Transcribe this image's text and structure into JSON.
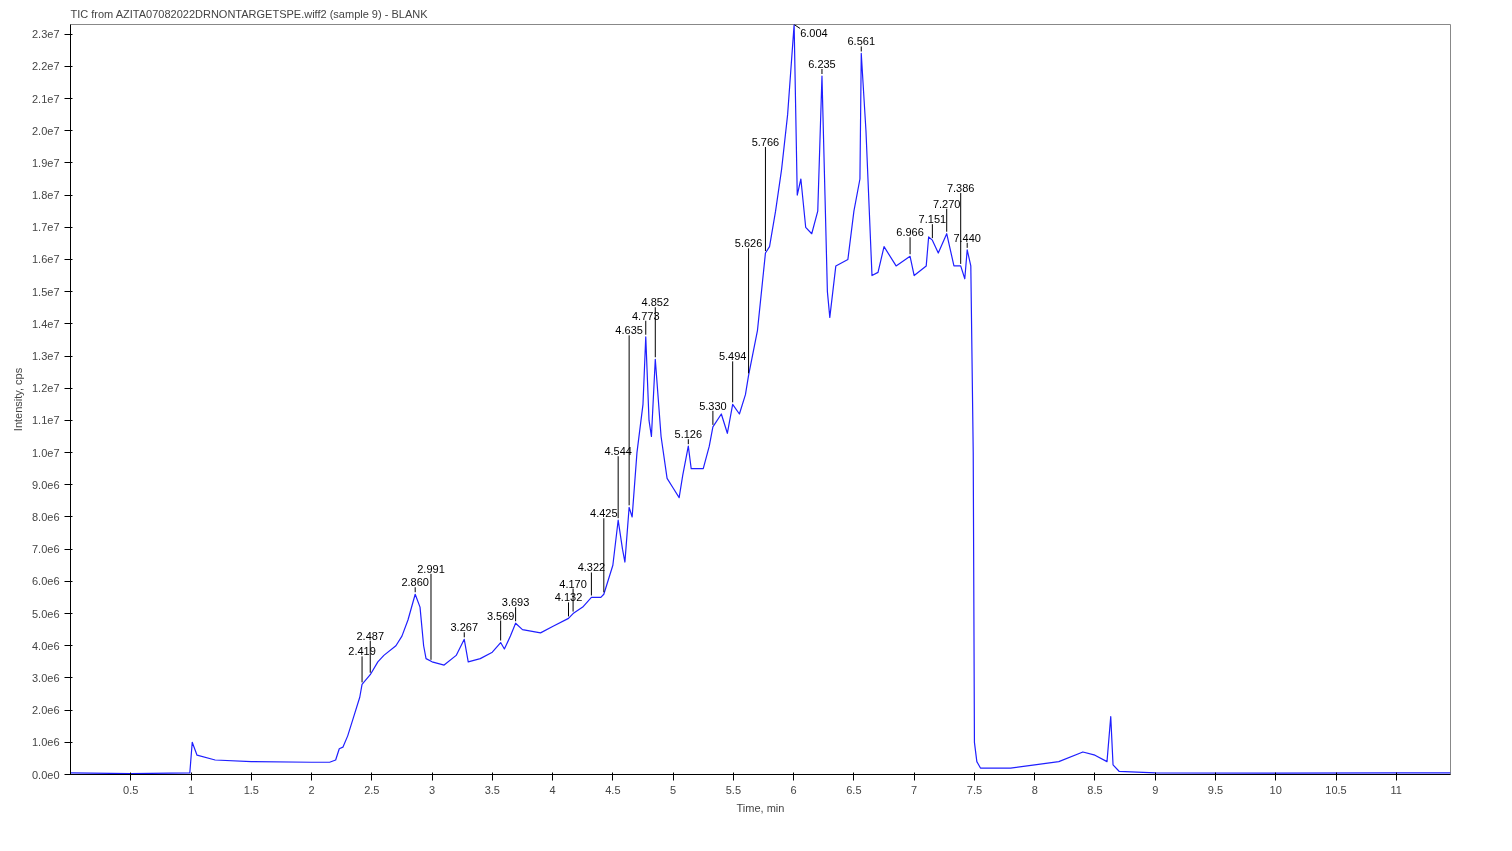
{
  "chart_data": {
    "type": "line",
    "title": "TIC from AZITA07082022DRNONTARGETSPE.wiff2 (sample 9) - BLANK",
    "xlabel": "Time, min",
    "ylabel": "Intensity, cps",
    "x": [
      0.0,
      0.5,
      0.99,
      1.01,
      1.05,
      1.2,
      1.5,
      2.0,
      2.15,
      2.2,
      2.23,
      2.26,
      2.3,
      2.35,
      2.4,
      2.419,
      2.487,
      2.55,
      2.6,
      2.7,
      2.75,
      2.8,
      2.86,
      2.9,
      2.93,
      2.95,
      3.0,
      3.1,
      3.2,
      3.267,
      3.3,
      3.4,
      3.5,
      3.569,
      3.6,
      3.65,
      3.693,
      3.75,
      3.9,
      4.0,
      4.132,
      4.17,
      4.25,
      4.322,
      4.4,
      4.425,
      4.5,
      4.544,
      4.58,
      4.6,
      4.635,
      4.66,
      4.7,
      4.75,
      4.773,
      4.8,
      4.82,
      4.852,
      4.9,
      4.95,
      5.0,
      5.05,
      5.08,
      5.126,
      5.15,
      5.25,
      5.3,
      5.33,
      5.4,
      5.45,
      5.494,
      5.55,
      5.6,
      5.626,
      5.7,
      5.766,
      5.8,
      5.85,
      5.9,
      5.95,
      6.004,
      6.03,
      6.06,
      6.1,
      6.15,
      6.2,
      6.235,
      6.26,
      6.28,
      6.3,
      6.35,
      6.45,
      6.5,
      6.55,
      6.561,
      6.6,
      6.65,
      6.7,
      6.75,
      6.85,
      6.966,
      7.0,
      7.1,
      7.12,
      7.151,
      7.2,
      7.27,
      7.33,
      7.386,
      7.42,
      7.44,
      7.47,
      7.49,
      7.5,
      7.52,
      7.55,
      7.8,
      8.0,
      8.2,
      8.4,
      8.5,
      8.6,
      8.631,
      8.65,
      8.7,
      9.0,
      10.0,
      11.0,
      11.45
    ],
    "series": [
      {
        "color": "#1f1fff",
        "values": [
          50000,
          30000,
          50000,
          1000000,
          600000,
          450000,
          400000,
          380000,
          380000,
          450000,
          800000,
          850000,
          1200000,
          1800000,
          2400000,
          2800000,
          3100000,
          3500000,
          3700000,
          4000000,
          4300000,
          4800000,
          5600000,
          5200000,
          4000000,
          3600000,
          3500000,
          3400000,
          3700000,
          4200000,
          3500000,
          3600000,
          3800000,
          4100000,
          3900000,
          4300000,
          4700000,
          4500000,
          4400000,
          4600000,
          4850000,
          5000000,
          5200000,
          5500000,
          5500000,
          5600000,
          6500000,
          7900000,
          7000000,
          6600000,
          8300000,
          8000000,
          10000000,
          11500000,
          13600000,
          11000000,
          10500000,
          12900000,
          10500000,
          9200000,
          8900000,
          8600000,
          9300000,
          10200000,
          9500000,
          9500000,
          10200000,
          10800000,
          11200000,
          10600000,
          11500000,
          11200000,
          11800000,
          12400000,
          13800000,
          16200000,
          16400000,
          17500000,
          18800000,
          20500000,
          23300000,
          18000000,
          18500000,
          17000000,
          16800000,
          17500000,
          21700000,
          18000000,
          15000000,
          14200000,
          15800000,
          16000000,
          17500000,
          18500000,
          22400000,
          20000000,
          15500000,
          15600000,
          16400000,
          15800000,
          16100000,
          15500000,
          15800000,
          16700000,
          16600000,
          16200000,
          16800000,
          15800000,
          15800000,
          15400000,
          16300000,
          15800000,
          10000000,
          1000000,
          400000,
          200000,
          200000,
          300000,
          400000,
          700000,
          600000,
          400000,
          1800000,
          300000,
          100000,
          50000,
          40000,
          50000,
          50000
        ]
      }
    ],
    "xlim": [
      0,
      11.45
    ],
    "ylim": [
      0,
      23300000
    ],
    "xticks": [
      0.5,
      1.0,
      1.5,
      2.0,
      2.5,
      3.0,
      3.5,
      4.0,
      4.5,
      5.0,
      5.5,
      6.0,
      6.5,
      7.0,
      7.5,
      8.0,
      8.5,
      9.0,
      9.5,
      10.0,
      10.5,
      11.0
    ],
    "yticks": [
      {
        "value": 0,
        "label": "0.0e0"
      },
      {
        "value": 1000000,
        "label": "1.0e6"
      },
      {
        "value": 2000000,
        "label": "2.0e6"
      },
      {
        "value": 3000000,
        "label": "3.0e6"
      },
      {
        "value": 4000000,
        "label": "4.0e6"
      },
      {
        "value": 5000000,
        "label": "5.0e6"
      },
      {
        "value": 6000000,
        "label": "6.0e6"
      },
      {
        "value": 7000000,
        "label": "7.0e6"
      },
      {
        "value": 8000000,
        "label": "8.0e6"
      },
      {
        "value": 9000000,
        "label": "9.0e6"
      },
      {
        "value": 10000000,
        "label": "1.0e7"
      },
      {
        "value": 11000000,
        "label": "1.1e7"
      },
      {
        "value": 12000000,
        "label": "1.2e7"
      },
      {
        "value": 13000000,
        "label": "1.3e7"
      },
      {
        "value": 14000000,
        "label": "1.4e7"
      },
      {
        "value": 15000000,
        "label": "1.5e7"
      },
      {
        "value": 16000000,
        "label": "1.6e7"
      },
      {
        "value": 17000000,
        "label": "1.7e7"
      },
      {
        "value": 18000000,
        "label": "1.8e7"
      },
      {
        "value": 19000000,
        "label": "1.9e7"
      },
      {
        "value": 20000000,
        "label": "2.0e7"
      },
      {
        "value": 21000000,
        "label": "2.1e7"
      },
      {
        "value": 22000000,
        "label": "2.2e7"
      },
      {
        "value": 23000000,
        "label": "2.3e7"
      }
    ],
    "grid": false,
    "marker": "none",
    "line_style": "solid",
    "annotations": [
      {
        "text": "2.419",
        "x": 2.419,
        "y": 2800000
      },
      {
        "text": "2.487",
        "x": 2.487,
        "y": 3100000
      },
      {
        "text": "2.860",
        "x": 2.86,
        "y": 5600000
      },
      {
        "text": "2.991",
        "x": 2.991,
        "y": 3500000
      },
      {
        "text": "3.267",
        "x": 3.267,
        "y": 4200000
      },
      {
        "text": "3.569",
        "x": 3.569,
        "y": 4100000
      },
      {
        "text": "3.693",
        "x": 3.693,
        "y": 4700000
      },
      {
        "text": "4.132",
        "x": 4.132,
        "y": 4850000
      },
      {
        "text": "4.170",
        "x": 4.17,
        "y": 5000000
      },
      {
        "text": "4.322",
        "x": 4.322,
        "y": 5500000
      },
      {
        "text": "4.425",
        "x": 4.425,
        "y": 5600000
      },
      {
        "text": "4.544",
        "x": 4.544,
        "y": 7900000
      },
      {
        "text": "4.635",
        "x": 4.635,
        "y": 8300000
      },
      {
        "text": "4.773",
        "x": 4.773,
        "y": 13600000
      },
      {
        "text": "4.852",
        "x": 4.852,
        "y": 12900000
      },
      {
        "text": "5.126",
        "x": 5.126,
        "y": 10200000
      },
      {
        "text": "5.330",
        "x": 5.33,
        "y": 10800000
      },
      {
        "text": "5.494",
        "x": 5.494,
        "y": 11500000
      },
      {
        "text": "5.626",
        "x": 5.626,
        "y": 12400000
      },
      {
        "text": "5.766",
        "x": 5.766,
        "y": 16200000
      },
      {
        "text": "6.004",
        "x": 6.004,
        "y": 23300000
      },
      {
        "text": "6.235",
        "x": 6.235,
        "y": 21700000
      },
      {
        "text": "6.561",
        "x": 6.561,
        "y": 22400000
      },
      {
        "text": "6.966",
        "x": 6.966,
        "y": 16100000
      },
      {
        "text": "7.151",
        "x": 7.151,
        "y": 16600000
      },
      {
        "text": "7.270",
        "x": 7.27,
        "y": 16800000
      },
      {
        "text": "7.386",
        "x": 7.386,
        "y": 15800000
      },
      {
        "text": "7.440",
        "x": 7.44,
        "y": 16300000
      }
    ]
  }
}
